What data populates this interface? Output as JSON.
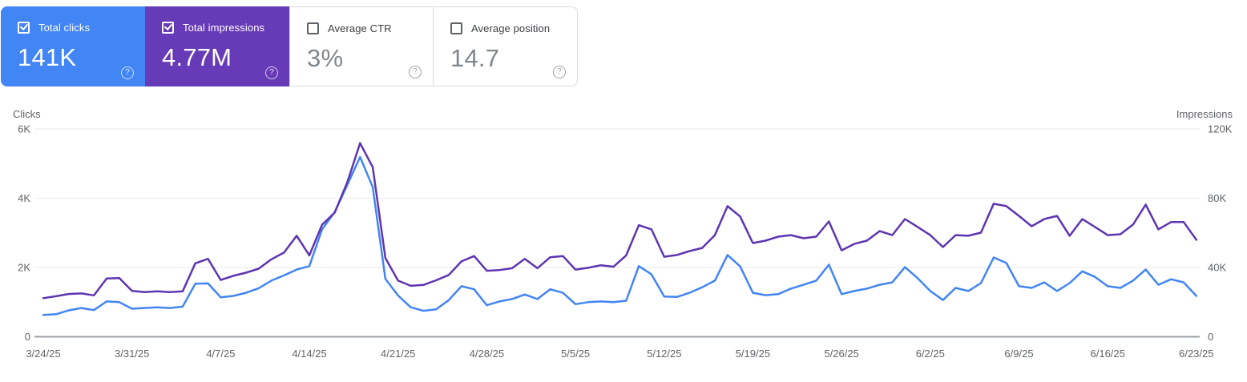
{
  "icons": {
    "help": "?"
  },
  "cards": [
    {
      "label": "Total clicks",
      "value": "141K",
      "checked": true,
      "bg": "#4285f4"
    },
    {
      "label": "Total impressions",
      "value": "4.77M",
      "checked": true,
      "bg": "#673ab7"
    },
    {
      "label": "Average CTR",
      "value": "3%",
      "checked": false,
      "bg": "#ffffff"
    },
    {
      "label": "Average position",
      "value": "14.7",
      "checked": false,
      "bg": "#ffffff"
    }
  ],
  "chart_data": {
    "type": "line",
    "grid": "horizontal",
    "x_tick_step": 7,
    "left_axis": {
      "label": "Clicks",
      "ticks": [
        "0",
        "2K",
        "4K",
        "6K"
      ],
      "range": [
        0,
        6000
      ]
    },
    "right_axis": {
      "label": "Impressions",
      "ticks": [
        "0",
        "40K",
        "80K",
        "120K"
      ],
      "range": [
        0,
        120000
      ]
    },
    "x": [
      "3/24/25",
      "3/25/25",
      "3/26/25",
      "3/27/25",
      "3/28/25",
      "3/29/25",
      "3/30/25",
      "3/31/25",
      "4/1/25",
      "4/2/25",
      "4/3/25",
      "4/4/25",
      "4/5/25",
      "4/6/25",
      "4/7/25",
      "4/8/25",
      "4/9/25",
      "4/10/25",
      "4/11/25",
      "4/12/25",
      "4/13/25",
      "4/14/25",
      "4/15/25",
      "4/16/25",
      "4/17/25",
      "4/18/25",
      "4/19/25",
      "4/20/25",
      "4/21/25",
      "4/22/25",
      "4/23/25",
      "4/24/25",
      "4/25/25",
      "4/26/25",
      "4/27/25",
      "4/28/25",
      "4/29/25",
      "4/30/25",
      "5/1/25",
      "5/2/25",
      "5/3/25",
      "5/4/25",
      "5/5/25",
      "5/6/25",
      "5/7/25",
      "5/8/25",
      "5/9/25",
      "5/10/25",
      "5/11/25",
      "5/12/25",
      "5/13/25",
      "5/14/25",
      "5/15/25",
      "5/16/25",
      "5/17/25",
      "5/18/25",
      "5/19/25",
      "5/20/25",
      "5/21/25",
      "5/22/25",
      "5/23/25",
      "5/24/25",
      "5/25/25",
      "5/26/25",
      "5/27/25",
      "5/28/25",
      "5/29/25",
      "5/30/25",
      "5/31/25",
      "6/1/25",
      "6/2/25",
      "6/3/25",
      "6/4/25",
      "6/5/25",
      "6/6/25",
      "6/7/25",
      "6/8/25",
      "6/9/25",
      "6/10/25",
      "6/11/25",
      "6/12/25",
      "6/13/25",
      "6/14/25",
      "6/15/25",
      "6/16/25",
      "6/17/25",
      "6/18/25",
      "6/19/25",
      "6/20/25",
      "6/21/25",
      "6/22/25",
      "6/23/25"
    ],
    "series": [
      {
        "name": "Clicks",
        "axis": "left",
        "color": "#4285f4",
        "values": [
          630,
          650,
          760,
          830,
          770,
          1020,
          1000,
          810,
          830,
          850,
          830,
          870,
          1530,
          1540,
          1140,
          1180,
          1270,
          1400,
          1620,
          1770,
          1940,
          2040,
          3100,
          3600,
          4390,
          5190,
          4320,
          1670,
          1190,
          850,
          750,
          790,
          1060,
          1460,
          1370,
          910,
          1020,
          1090,
          1220,
          1090,
          1370,
          1270,
          940,
          1000,
          1020,
          1000,
          1040,
          2040,
          1800,
          1160,
          1150,
          1270,
          1430,
          1620,
          2360,
          2030,
          1270,
          1200,
          1230,
          1390,
          1500,
          1620,
          2080,
          1230,
          1320,
          1390,
          1500,
          1570,
          2010,
          1690,
          1320,
          1060,
          1410,
          1320,
          1550,
          2290,
          2130,
          1460,
          1410,
          1570,
          1320,
          1550,
          1890,
          1730,
          1460,
          1410,
          1620,
          1940,
          1500,
          1660,
          1570,
          1180
        ]
      },
      {
        "name": "Impressions",
        "axis": "right",
        "color": "#5e35b1",
        "values": [
          22300,
          23400,
          24700,
          25000,
          23900,
          33600,
          33900,
          26500,
          25800,
          26200,
          25800,
          26200,
          42400,
          45000,
          32800,
          35200,
          37000,
          39300,
          44700,
          48600,
          58300,
          47000,
          64700,
          71700,
          89400,
          111800,
          97900,
          45400,
          32400,
          29400,
          29900,
          32600,
          35700,
          43500,
          46600,
          38100,
          38500,
          39600,
          45000,
          39600,
          45900,
          46600,
          38800,
          39800,
          41300,
          40400,
          47000,
          64400,
          62000,
          46200,
          47200,
          49500,
          51300,
          58700,
          75400,
          69400,
          54100,
          55500,
          57800,
          58700,
          56900,
          57800,
          66600,
          49900,
          53600,
          55500,
          61000,
          58700,
          68000,
          63400,
          58700,
          51800,
          58700,
          58300,
          60100,
          76800,
          75400,
          69800,
          63800,
          68000,
          69800,
          58300,
          68000,
          63400,
          58700,
          59200,
          64800,
          76300,
          62000,
          66200,
          66200,
          56000
        ]
      }
    ]
  }
}
